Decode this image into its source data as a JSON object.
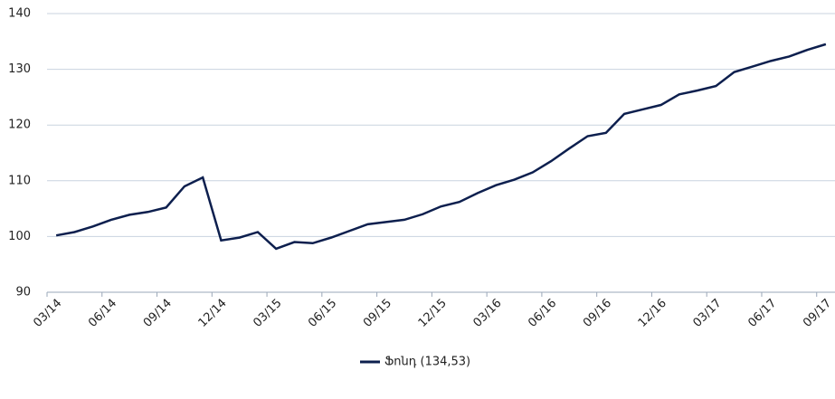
{
  "chart_data": {
    "type": "line",
    "categories": [
      "03/14",
      null,
      null,
      "06/14",
      null,
      null,
      "09/14",
      null,
      null,
      "12/14",
      null,
      null,
      "03/15",
      null,
      null,
      "06/15",
      null,
      null,
      "09/15",
      null,
      null,
      "12/15",
      null,
      null,
      "03/16",
      null,
      null,
      "06/16",
      null,
      null,
      "09/16",
      null,
      null,
      "12/16",
      null,
      null,
      "03/17",
      null,
      null,
      "06/17",
      null,
      null,
      "09/17"
    ],
    "series": [
      {
        "name": "Ֆոնդ (134,53)",
        "color": "#0d1f4e",
        "values": [
          100.2,
          100.8,
          101.8,
          103.0,
          103.9,
          104.4,
          105.2,
          109.0,
          110.6,
          99.3,
          99.8,
          100.8,
          97.8,
          99.0,
          98.8,
          99.8,
          101.0,
          102.2,
          102.6,
          103.0,
          104.0,
          105.4,
          106.2,
          107.8,
          109.2,
          110.2,
          111.5,
          113.5,
          115.8,
          118.0,
          118.6,
          122.0,
          122.8,
          123.6,
          125.5,
          126.2,
          127.0,
          129.5,
          130.5,
          131.5,
          132.3,
          133.5,
          134.5
        ]
      }
    ],
    "ylim": [
      90,
      140
    ],
    "yticks": [
      90,
      100,
      110,
      120,
      130,
      140
    ],
    "grid": true,
    "legend": "bottom"
  }
}
